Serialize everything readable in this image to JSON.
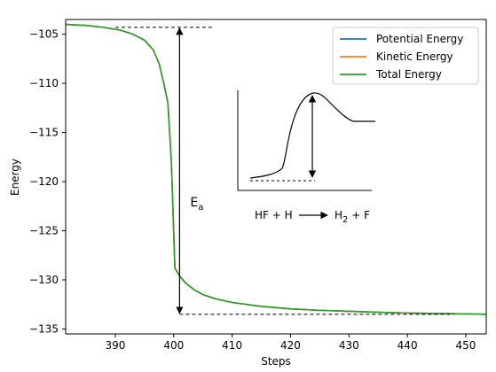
{
  "chart_data": {
    "type": "line",
    "title": "",
    "xlabel": "Steps",
    "ylabel": "Energy",
    "xlim": [
      381.5,
      453.5
    ],
    "ylim": [
      -135.5,
      -103.5
    ],
    "x_ticks": [
      390,
      400,
      410,
      420,
      430,
      440,
      450
    ],
    "y_ticks": [
      -105,
      -110,
      -115,
      -120,
      -125,
      -130,
      -135
    ],
    "x_tick_labels": [
      "390",
      "400",
      "410",
      "420",
      "430",
      "440",
      "450"
    ],
    "y_tick_labels": [
      "−105",
      "−110",
      "−115",
      "−120",
      "−125",
      "−130",
      "−135"
    ],
    "grid": false,
    "legend_position": "top-right",
    "series": [
      {
        "name": "Potential Energy",
        "color": "#1f77b4",
        "x": [
          381.5,
          385,
          388,
          391,
          393,
          395,
          396.5,
          397.5,
          398.3,
          399,
          399.6,
          400.2,
          401,
          402,
          403.5,
          405,
          407,
          410,
          415,
          420,
          425,
          430,
          435,
          440,
          445,
          450,
          453.5
        ],
        "y": [
          -104.0,
          -104.1,
          -104.3,
          -104.6,
          -105.0,
          -105.6,
          -106.6,
          -108.0,
          -110.0,
          -112.0,
          -118.0,
          -128.8,
          -129.6,
          -130.3,
          -131.0,
          -131.5,
          -131.9,
          -132.3,
          -132.7,
          -132.95,
          -133.1,
          -133.2,
          -133.3,
          -133.37,
          -133.42,
          -133.47,
          -133.5
        ]
      },
      {
        "name": "Kinetic Energy",
        "color": "#ff7f0e",
        "x": [
          381.5,
          385,
          388,
          391,
          393,
          395,
          396.5,
          397.5,
          398.3,
          399,
          399.6,
          400.2,
          401,
          402,
          403.5,
          405,
          407,
          410,
          415,
          420,
          425,
          430,
          435,
          440,
          445,
          450,
          453.5
        ],
        "y": [
          -104.0,
          -104.1,
          -104.3,
          -104.6,
          -105.0,
          -105.6,
          -106.6,
          -108.0,
          -110.0,
          -112.0,
          -118.0,
          -128.8,
          -129.6,
          -130.3,
          -131.0,
          -131.5,
          -131.9,
          -132.3,
          -132.7,
          -132.95,
          -133.1,
          -133.2,
          -133.3,
          -133.37,
          -133.42,
          -133.47,
          -133.5
        ]
      },
      {
        "name": "Total Energy",
        "color": "#2ca02c",
        "x": [
          381.5,
          385,
          388,
          391,
          393,
          395,
          396.5,
          397.5,
          398.3,
          399,
          399.6,
          400.2,
          401,
          402,
          403.5,
          405,
          407,
          410,
          415,
          420,
          425,
          430,
          435,
          440,
          445,
          450,
          453.5
        ],
        "y": [
          -104.0,
          -104.1,
          -104.3,
          -104.6,
          -105.0,
          -105.6,
          -106.6,
          -108.0,
          -110.0,
          -112.0,
          -118.0,
          -128.8,
          -129.6,
          -130.3,
          -131.0,
          -131.5,
          -131.9,
          -132.3,
          -132.7,
          -132.95,
          -133.1,
          -133.2,
          -133.3,
          -133.37,
          -133.42,
          -133.47,
          -133.5
        ]
      }
    ],
    "annotations": {
      "ea_label": "E",
      "ea_subscript": "a",
      "top_reference": {
        "x": [
          390,
          407
        ],
        "y": -104.3
      },
      "bottom_reference": {
        "x": [
          401,
          448
        ],
        "y": -133.5
      },
      "arrow_x": 401,
      "reaction": {
        "lhs": "HF + H",
        "rhs_main": "H",
        "rhs_subscript": "2",
        "rhs_tail": " + F"
      }
    }
  }
}
